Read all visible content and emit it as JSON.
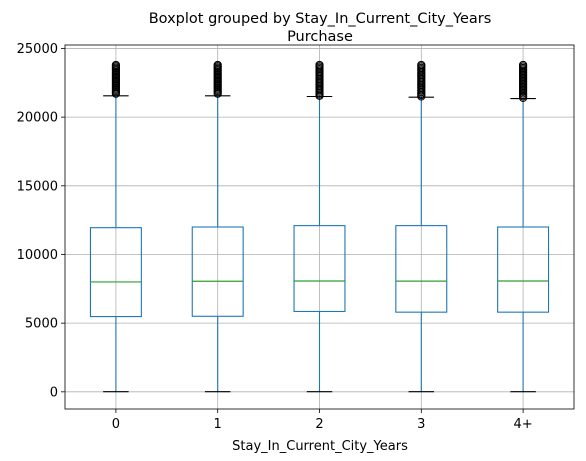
{
  "chart_data": {
    "type": "boxplot",
    "title": "Boxplot grouped by Stay_In_Current_City_Years",
    "subtitle": "Purchase",
    "xlabel": "Stay_In_Current_City_Years",
    "ylabel": "",
    "categories": [
      "0",
      "1",
      "2",
      "3",
      "4+"
    ],
    "ylim": [
      -1250,
      25250
    ],
    "yticks": [
      0,
      5000,
      10000,
      15000,
      20000,
      25000
    ],
    "ytick_labels": [
      "0",
      "5000",
      "10000",
      "15000",
      "20000",
      "25000"
    ],
    "grid": true,
    "colors": {
      "box": "#1f77b4",
      "median": "#2ca02c",
      "whisker": "#1f77b4",
      "cap": "#000000",
      "flier": "#000000",
      "grid": "#b0b0b0"
    },
    "boxes": [
      {
        "category": "0",
        "whisker_low": 12,
        "q1": 5480,
        "median": 8000,
        "q3": 11950,
        "whisker_high": 21550,
        "fliers": [
          21700,
          23800
        ]
      },
      {
        "category": "1",
        "whisker_low": 12,
        "q1": 5500,
        "median": 8050,
        "q3": 12000,
        "whisker_high": 21550,
        "fliers": [
          21700,
          23800
        ]
      },
      {
        "category": "2",
        "whisker_low": 12,
        "q1": 5850,
        "median": 8070,
        "q3": 12100,
        "whisker_high": 21500,
        "fliers": [
          21550,
          23800
        ]
      },
      {
        "category": "3",
        "whisker_low": 12,
        "q1": 5800,
        "median": 8060,
        "q3": 12100,
        "whisker_high": 21450,
        "fliers": [
          21500,
          23800
        ]
      },
      {
        "category": "4+",
        "whisker_low": 12,
        "q1": 5800,
        "median": 8070,
        "q3": 12000,
        "whisker_high": 21350,
        "fliers": [
          21400,
          23800
        ]
      }
    ]
  }
}
